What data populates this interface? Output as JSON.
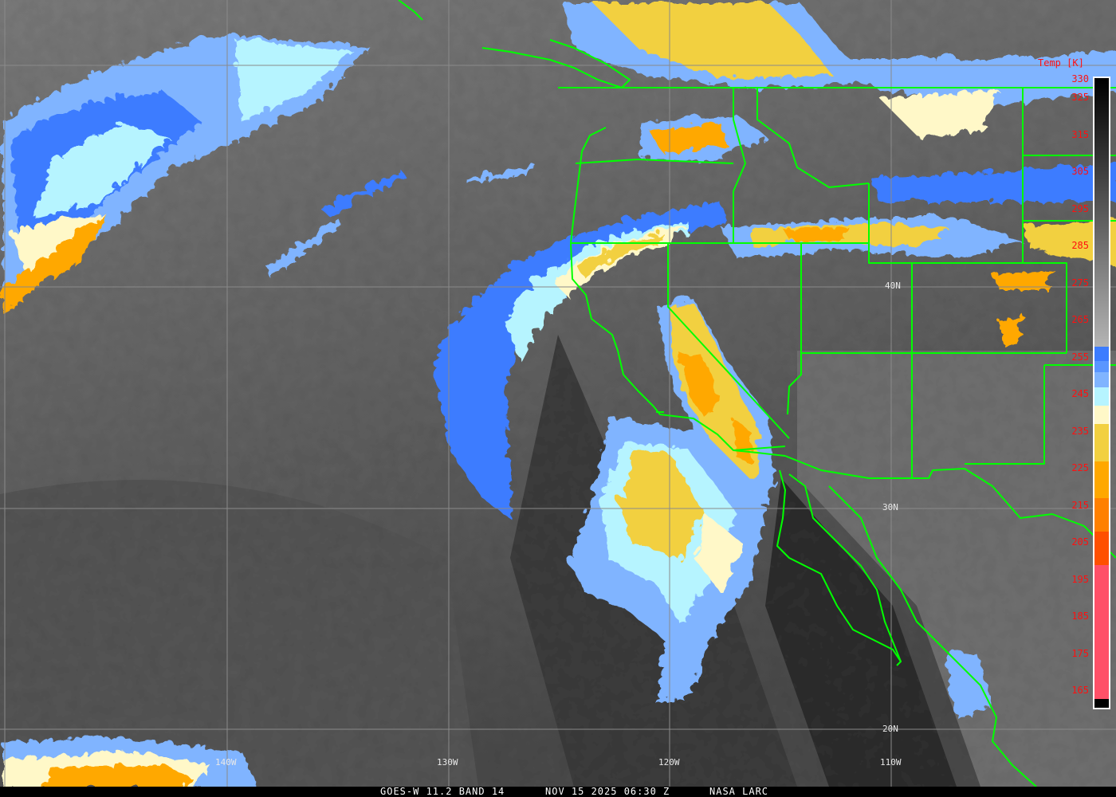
{
  "caption": {
    "satellite": "GOES-W 11.2 BAND 14",
    "datetime": "NOV 15 2025 06:30 Z",
    "source": "NASA LARC"
  },
  "colorbar": {
    "title": "Temp [K]",
    "labels": [
      "330",
      "325",
      "315",
      "305",
      "295",
      "285",
      "275",
      "265",
      "255",
      "245",
      "235",
      "225",
      "215",
      "205",
      "195",
      "185",
      "175",
      "165"
    ],
    "range_k": [
      165,
      330
    ],
    "colormap": [
      {
        "from": 330,
        "to": 258,
        "color": "#000000",
        "color_end": "#b4b4b4"
      },
      {
        "from": 258,
        "to": 254,
        "color": "#3c7cff"
      },
      {
        "from": 254,
        "to": 251,
        "color": "#5a96ff"
      },
      {
        "from": 251,
        "to": 247,
        "color": "#80b4ff"
      },
      {
        "from": 247,
        "to": 242,
        "color": "#b6f4ff"
      },
      {
        "from": 242,
        "to": 237,
        "color": "#fff8c8"
      },
      {
        "from": 237,
        "to": 227,
        "color": "#f2d040"
      },
      {
        "from": 227,
        "to": 217,
        "color": "#ffa800"
      },
      {
        "from": 217,
        "to": 208,
        "color": "#ff8000"
      },
      {
        "from": 208,
        "to": 199,
        "color": "#ff5000"
      },
      {
        "from": 199,
        "to": 163,
        "color": "#ff5068"
      },
      {
        "from": 163,
        "to": 160,
        "color": "#000000"
      }
    ]
  },
  "grid": {
    "longitudes": [
      "140W",
      "130W",
      "120W",
      "110W"
    ],
    "latitudes": [
      "40N",
      "30N",
      "20N"
    ]
  },
  "colors": {
    "borders": "#00ff00",
    "gridlines": "#8a8a8a",
    "labels_colorbar": "#ff1010"
  }
}
